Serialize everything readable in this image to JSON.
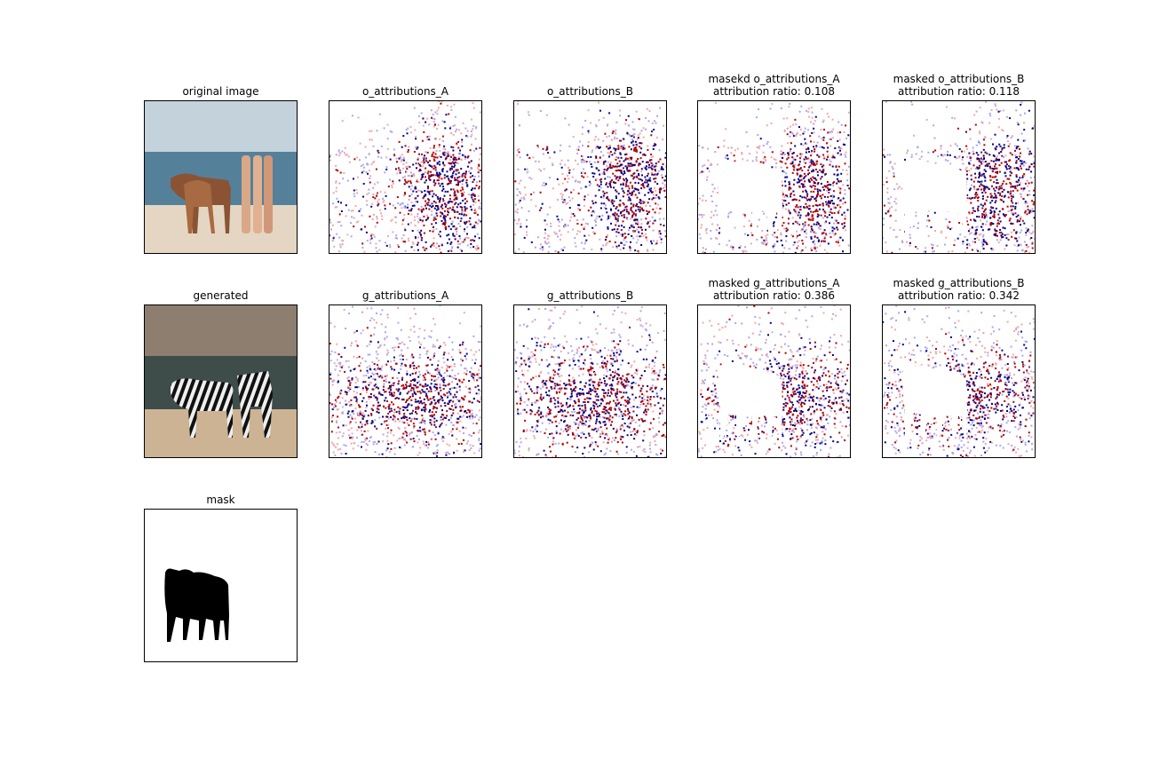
{
  "rows": [
    [
      {
        "title": [
          "original image"
        ]
      },
      {
        "title": [
          "o_attributions_A"
        ]
      },
      {
        "title": [
          "o_attributions_B"
        ]
      },
      {
        "title": [
          "masekd o_attributions_A",
          "attribution ratio: 0.108"
        ]
      },
      {
        "title": [
          "masked o_attributions_B",
          "attribution ratio: 0.118"
        ]
      }
    ],
    [
      {
        "title": [
          "generated"
        ]
      },
      {
        "title": [
          "g_attributions_A"
        ]
      },
      {
        "title": [
          "g_attributions_B"
        ]
      },
      {
        "title": [
          "masked g_attributions_A",
          "attribution ratio: 0.386"
        ]
      },
      {
        "title": [
          "masked g_attributions_B",
          "attribution ratio: 0.342"
        ]
      }
    ],
    [
      {
        "title": [
          "mask"
        ]
      }
    ]
  ]
}
